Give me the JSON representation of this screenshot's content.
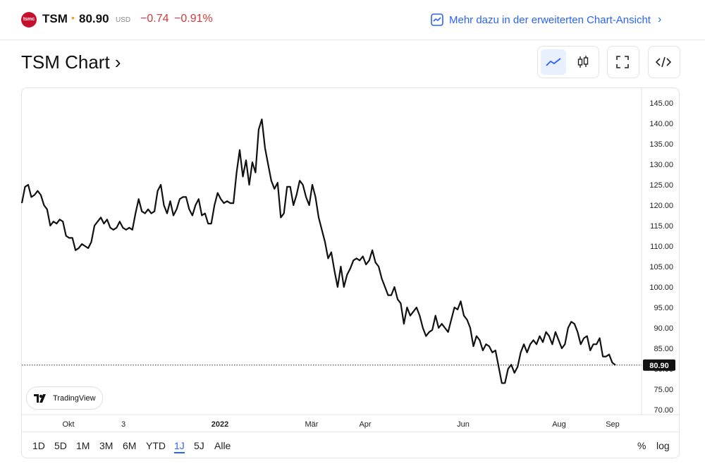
{
  "header": {
    "logo_text": "tsmc",
    "ticker": "TSM",
    "price": "80.90",
    "currency": "USD",
    "change": "−0.74",
    "change_pct": "−0.91%",
    "advanced_link": "Mehr dazu in der erweiterten Chart-Ansicht"
  },
  "title": "TSM Chart ›",
  "toolbar": [
    "line-chart-icon",
    "candlestick-icon",
    "fullscreen-icon",
    "embed-code-icon"
  ],
  "branding": "TradingView",
  "ranges": [
    "1D",
    "5D",
    "1M",
    "3M",
    "6M",
    "YTD",
    "1J",
    "5J",
    "Alle"
  ],
  "active_range": "1J",
  "scale_options": [
    "%",
    "log"
  ],
  "colors": {
    "line": "#111111",
    "accent": "#2962ff",
    "negative": "#d23a3a",
    "brand": "#c8102e"
  },
  "chart_data": {
    "type": "line",
    "series": [
      {
        "values": [
          120.5,
          124.5,
          125.0,
          122.0,
          122.5,
          123.5,
          122.5,
          120.0,
          119.0,
          115.0,
          116.0,
          115.5,
          116.5,
          116.0,
          112.5,
          112.0,
          112.0,
          109.0,
          109.5,
          110.5,
          110.0,
          109.5,
          111.0,
          115.0,
          116.0,
          117.0,
          115.5,
          116.5,
          114.5,
          114.0,
          114.5,
          116.0,
          114.5,
          114.0,
          114.5,
          114.0,
          118.0,
          121.5,
          118.5,
          118.0,
          119.0,
          118.0,
          118.5,
          123.5,
          125.0,
          120.0,
          118.0,
          121.0,
          117.5,
          119.0,
          121.5,
          122.0,
          122.0,
          119.0,
          117.5,
          120.0,
          121.5,
          117.5,
          118.0,
          115.5,
          115.5,
          120.0,
          123.0,
          121.5,
          120.5,
          121.0,
          120.5,
          120.5,
          128.0,
          133.5,
          127.0,
          131.0,
          125.0,
          130.5,
          128.0,
          138.5,
          141.0,
          134.0,
          130.0,
          126.0,
          124.0,
          125.5,
          117.0,
          118.0,
          124.5,
          124.5,
          120.0,
          122.5,
          126.0,
          125.0,
          122.0,
          120.0,
          125.0,
          122.0,
          117.0,
          114.0,
          111.0,
          107.0,
          108.5,
          104.0,
          100.0,
          105.0,
          100.0,
          103.0,
          104.5,
          106.5,
          107.0,
          106.5,
          107.5,
          105.5,
          106.5,
          109.0,
          106.0,
          105.0,
          102.0,
          100.0,
          98.0,
          98.0,
          100.0,
          97.0,
          96.0,
          91.0,
          95.0,
          93.0,
          94.0,
          95.0,
          93.0,
          90.0,
          88.0,
          89.0,
          89.5,
          93.0,
          90.0,
          91.0,
          90.0,
          89.0,
          92.0,
          95.0,
          94.5,
          96.5,
          93.0,
          92.0,
          90.0,
          85.5,
          88.0,
          87.0,
          84.5,
          86.0,
          85.5,
          84.0,
          84.5,
          80.5,
          76.5,
          76.5,
          80.0,
          81.0,
          79.0,
          80.5,
          84.0,
          86.0,
          84.0,
          86.0,
          87.0,
          86.0,
          88.0,
          86.5,
          89.0,
          88.0,
          86.0,
          89.0,
          87.0,
          85.0,
          86.0,
          90.0,
          91.5,
          91.0,
          89.0,
          86.0,
          87.5,
          88.0,
          84.5,
          86.0,
          86.0,
          87.5,
          83.0,
          83.0,
          83.5,
          81.5,
          80.9
        ]
      }
    ],
    "x_ticks": [
      "Okt",
      "3",
      "2022",
      "Mär",
      "Apr",
      "Jun",
      "Aug",
      "Sep"
    ],
    "y_ticks": [
      "145.00",
      "140.00",
      "135.00",
      "130.00",
      "125.00",
      "120.00",
      "115.00",
      "110.00",
      "105.00",
      "100.00",
      "95.00",
      "90.00",
      "85.00",
      "80.00",
      "75.00",
      "70.00"
    ],
    "ylim": [
      70,
      145
    ],
    "last_value": "80.90",
    "grid": false
  }
}
